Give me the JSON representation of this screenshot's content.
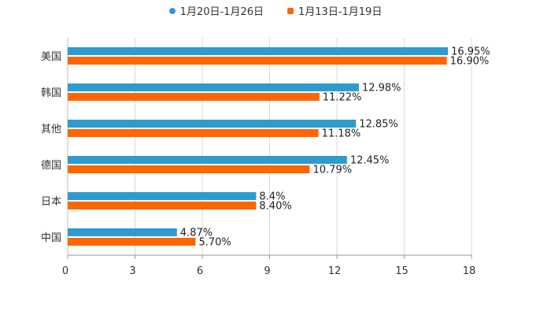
{
  "chart_data": {
    "type": "bar",
    "orientation": "horizontal",
    "title": "",
    "xlabel": "",
    "ylabel": "",
    "xlim": [
      0,
      18
    ],
    "x_ticks": [
      0,
      3,
      6,
      9,
      12,
      15,
      18
    ],
    "categories": [
      "美国",
      "韩国",
      "其他",
      "德国",
      "日本",
      "中国"
    ],
    "series": [
      {
        "name": "1月20日-1月26日",
        "color": "#2E9BCF",
        "values": [
          16.95,
          12.98,
          12.85,
          12.45,
          8.4,
          4.87
        ],
        "labels": [
          "16.95%",
          "12.98%",
          "12.85%",
          "12.45%",
          "8.4%",
          "4.87%"
        ]
      },
      {
        "name": "1月13日-1月19日",
        "color": "#FF6600",
        "values": [
          16.9,
          11.22,
          11.18,
          10.79,
          8.4,
          5.7
        ],
        "labels": [
          "16.90%",
          "11.22%",
          "11.18%",
          "10.79%",
          "8.40%",
          "5.70%"
        ]
      }
    ],
    "grid": true,
    "legend_position": "top-center"
  }
}
